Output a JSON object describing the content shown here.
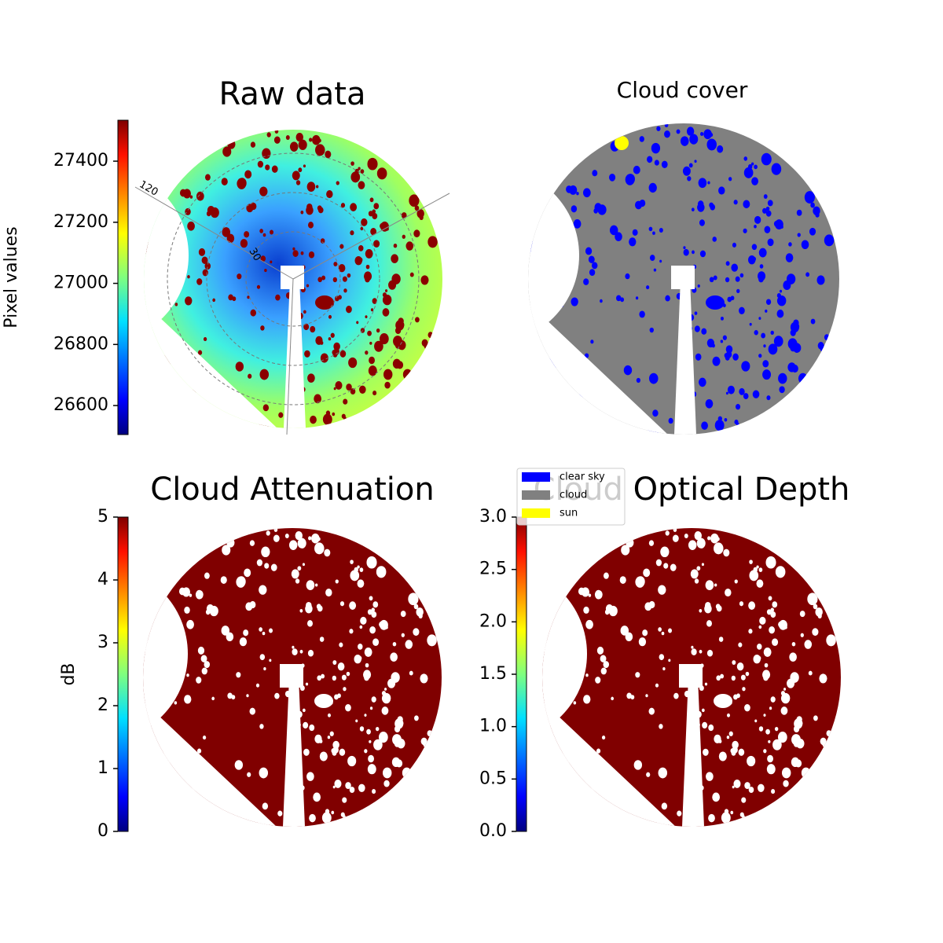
{
  "chart_data": [
    {
      "type": "image",
      "title": "Raw data",
      "ylabel": "Pixel values",
      "colormap": "jet",
      "ylim": [
        26505,
        27534
      ],
      "yticks": [
        26600,
        26800,
        27000,
        27200,
        27400
      ],
      "annotations": [
        "120",
        "30"
      ]
    },
    {
      "type": "image",
      "title": "Cloud cover",
      "series": [
        {
          "name": "clear sky",
          "color": "#0000ff"
        },
        {
          "name": "cloud",
          "color": "#808080"
        },
        {
          "name": "sun",
          "color": "#ffff00"
        }
      ]
    },
    {
      "type": "image",
      "title": "Cloud Attenuation",
      "ylabel": "dB",
      "colormap": "jet",
      "ylim": [
        0,
        5
      ],
      "yticks": [
        0,
        1,
        2,
        3,
        4,
        5
      ]
    },
    {
      "type": "image",
      "title": "Cloud Optical Depth",
      "colormap": "jet",
      "ylim": [
        0,
        3
      ],
      "yticks": [
        {
          "value": 0,
          "label": "0.0"
        },
        {
          "value": 0.5,
          "label": "0.5"
        },
        {
          "value": 1,
          "label": "1.0"
        },
        {
          "value": 1.5,
          "label": "1.5"
        },
        {
          "value": 2,
          "label": "2.0"
        },
        {
          "value": 2.5,
          "label": "2.5"
        },
        {
          "value": 3,
          "label": "3.0"
        }
      ]
    }
  ]
}
